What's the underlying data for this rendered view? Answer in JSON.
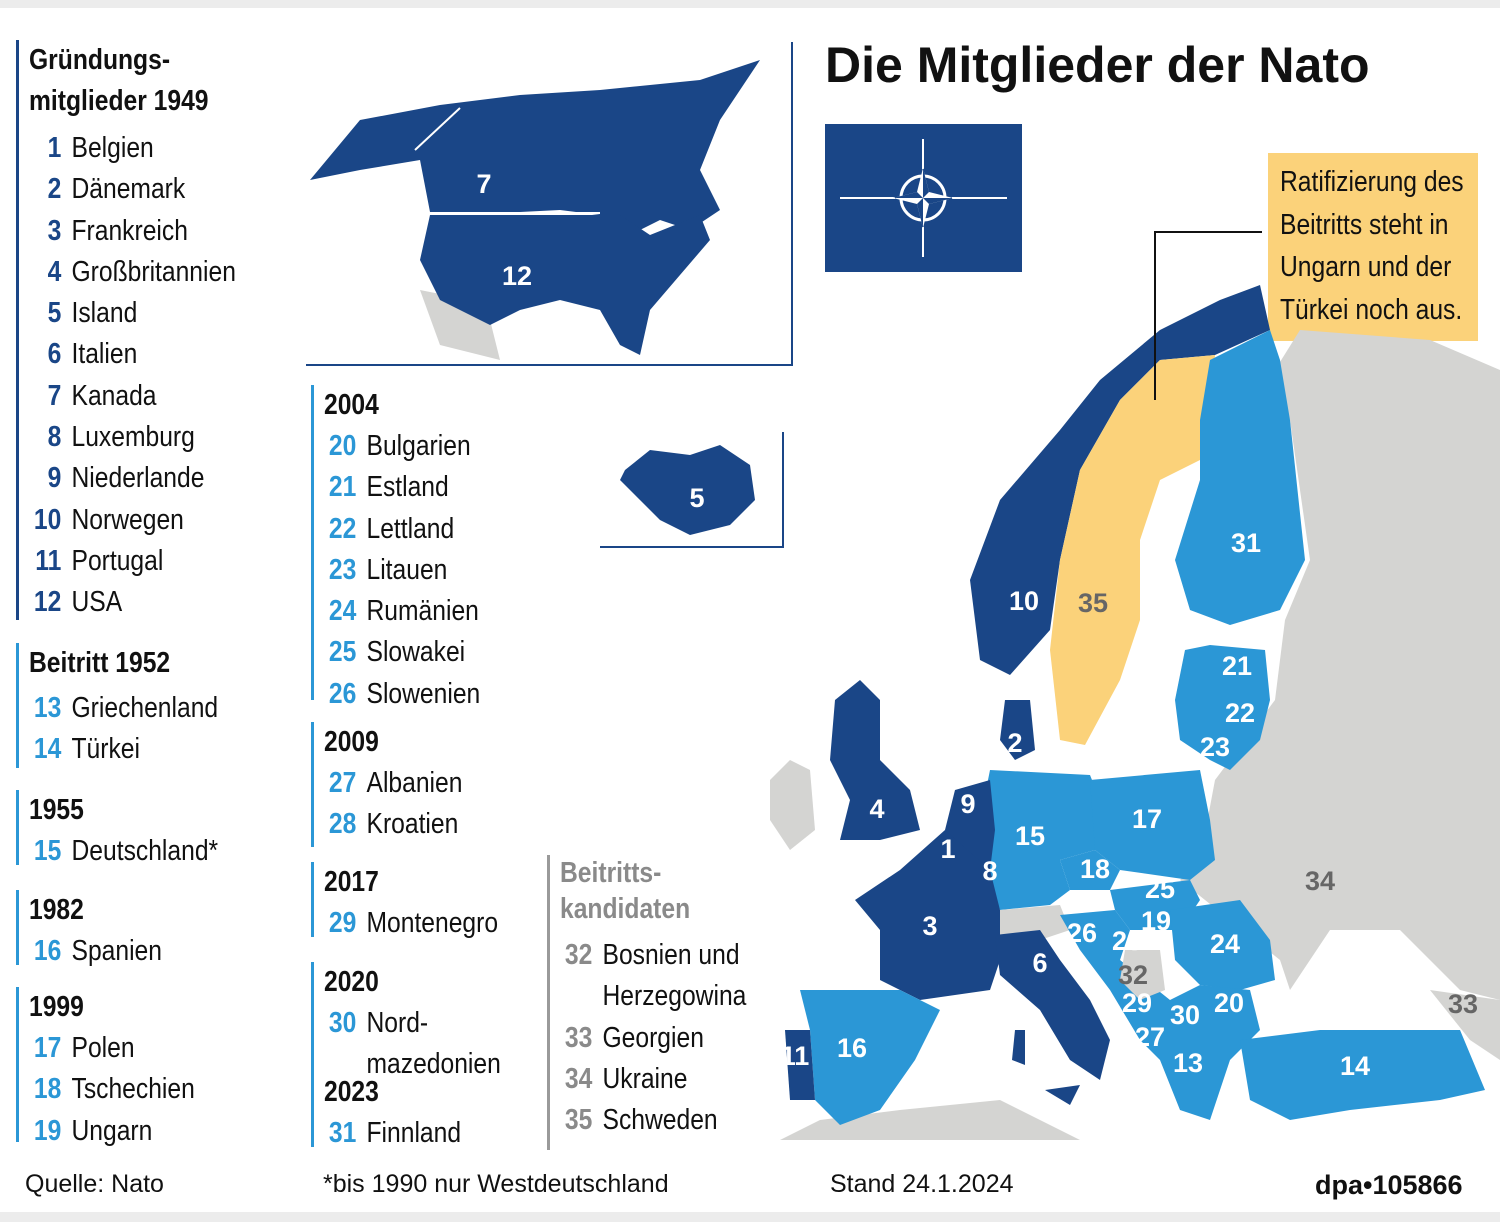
{
  "title": "Die Mitglieder der Nato",
  "callout": [
    "Ratifizierung des",
    "Beitritts steht in",
    "Ungarn und der",
    "Türkei noch aus."
  ],
  "colors": {
    "founding": "#1a4687",
    "later_member": "#2b97d6",
    "pending": "#fbd27a",
    "non_member": "#d4d4d2"
  },
  "groups": [
    {
      "heading": "Gründungs- mitglieder 1949",
      "heading_lines": [
        "Gründungs-",
        "mitglieder 1949"
      ],
      "items": [
        {
          "num": "1",
          "name": "Belgien"
        },
        {
          "num": "2",
          "name": "Dänemark"
        },
        {
          "num": "3",
          "name": "Frankreich"
        },
        {
          "num": "4",
          "name": "Großbritannien"
        },
        {
          "num": "5",
          "name": "Island"
        },
        {
          "num": "6",
          "name": "Italien"
        },
        {
          "num": "7",
          "name": "Kanada"
        },
        {
          "num": "8",
          "name": "Luxemburg"
        },
        {
          "num": "9",
          "name": "Niederlande"
        },
        {
          "num": "10",
          "name": "Norwegen"
        },
        {
          "num": "11",
          "name": "Portugal"
        },
        {
          "num": "12",
          "name": "USA"
        }
      ]
    },
    {
      "heading": "Beitritt 1952",
      "items": [
        {
          "num": "13",
          "name": "Griechenland"
        },
        {
          "num": "14",
          "name": "Türkei"
        }
      ]
    },
    {
      "heading": "1955",
      "items": [
        {
          "num": "15",
          "name": "Deutschland*"
        }
      ]
    },
    {
      "heading": "1982",
      "items": [
        {
          "num": "16",
          "name": "Spanien"
        }
      ]
    },
    {
      "heading": "1999",
      "items": [
        {
          "num": "17",
          "name": "Polen"
        },
        {
          "num": "18",
          "name": "Tschechien"
        },
        {
          "num": "19",
          "name": "Ungarn"
        }
      ]
    },
    {
      "heading": "2004",
      "items": [
        {
          "num": "20",
          "name": "Bulgarien"
        },
        {
          "num": "21",
          "name": "Estland"
        },
        {
          "num": "22",
          "name": "Lettland"
        },
        {
          "num": "23",
          "name": "Litauen"
        },
        {
          "num": "24",
          "name": "Rumänien"
        },
        {
          "num": "25",
          "name": "Slowakei"
        },
        {
          "num": "26",
          "name": "Slowenien"
        }
      ]
    },
    {
      "heading": "2009",
      "items": [
        {
          "num": "27",
          "name": "Albanien"
        },
        {
          "num": "28",
          "name": "Kroatien"
        }
      ]
    },
    {
      "heading": "2017",
      "items": [
        {
          "num": "29",
          "name": "Montenegro"
        }
      ]
    },
    {
      "heading": "2020",
      "items": [
        {
          "num": "30",
          "name": "Nord-",
          "name2": "mazedonien"
        }
      ]
    },
    {
      "heading": "2023",
      "items": [
        {
          "num": "31",
          "name": "Finnland"
        }
      ]
    },
    {
      "heading": "Beitritts- kandidaten",
      "heading_lines": [
        "Beitritts-",
        "kandidaten"
      ],
      "items": [
        {
          "num": "32",
          "name": "Bosnien und",
          "name2": "Herzegowina"
        },
        {
          "num": "33",
          "name": "Georgien"
        },
        {
          "num": "34",
          "name": "Ukraine"
        },
        {
          "num": "35",
          "name": "Schweden"
        }
      ]
    }
  ],
  "footer": {
    "source": "Quelle: Nato",
    "note": "*bis 1990 nur Westdeutschland",
    "date": "Stand 24.1.2024",
    "credit": "dpa•105866"
  }
}
